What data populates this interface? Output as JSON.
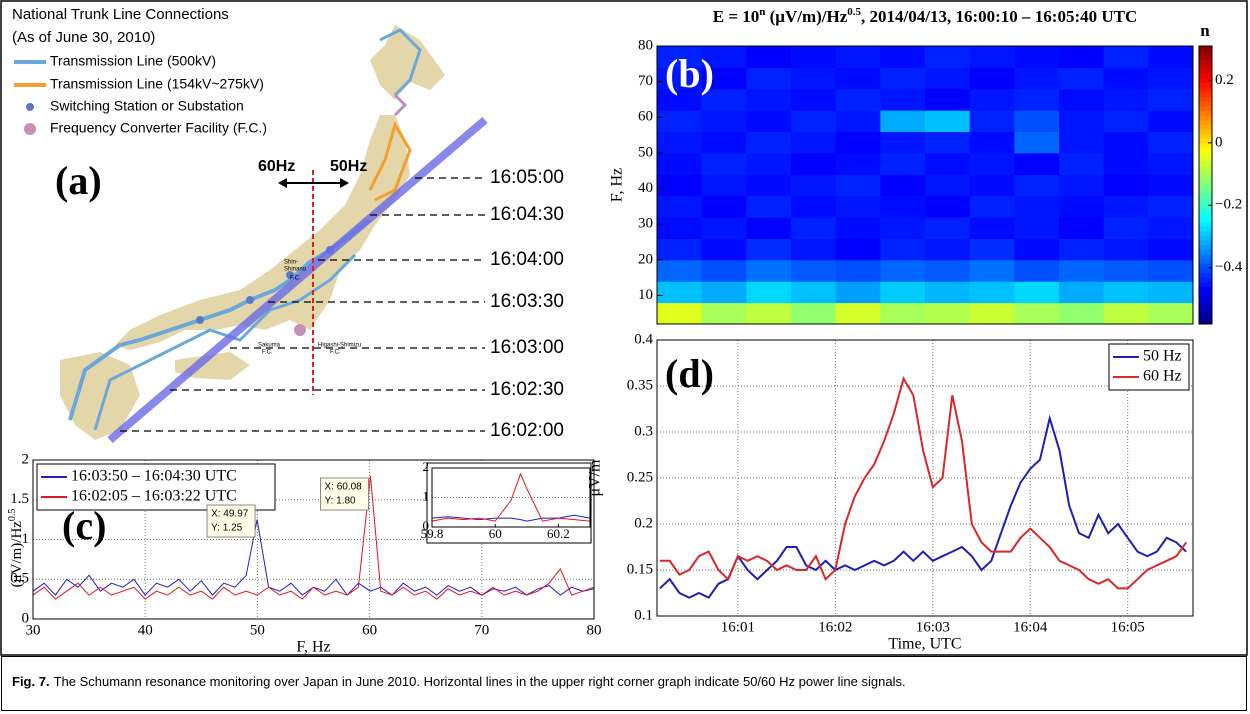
{
  "map": {
    "panel_label": "(a)",
    "title": [
      "National Trunk Line Connections",
      "(As of June 30, 2010)"
    ],
    "legend": [
      "Transmission Line (500kV)",
      "Transmission Line (154kV~275kV)",
      "Switching Station or Substation",
      "Frequency Converter Facility (F.C.)"
    ],
    "frequency_labels": [
      "60Hz",
      "50Hz"
    ],
    "times": [
      "16:05:00",
      "16:04:30",
      "16:04:00",
      "16:03:30",
      "16:03:00",
      "16:02:30",
      "16:02:00"
    ],
    "facilities": [
      [
        "Shin-",
        "Shinano",
        "F.C."
      ],
      [
        "Sakuma",
        "F.C."
      ],
      [
        "Higashi-Shimizu",
        "F.C."
      ]
    ]
  },
  "chart_data": [
    {
      "type": "heatmap",
      "panel_label": "(b)",
      "title": [
        "E = 10",
        "n",
        " (μV/m)/Hz",
        "0.5",
        ", 2014/04/13, 16:00:10 – 16:05:40 UTC"
      ],
      "ylabel": "F, Hz",
      "ylim": [
        2,
        80
      ],
      "yticks": [
        10,
        20,
        30,
        40,
        50,
        60,
        70,
        80
      ],
      "colorbar_label": "n",
      "clim": [
        -0.58,
        0.31
      ],
      "cticks": [
        {
          "value": 0.2,
          "label": "0.2"
        },
        {
          "value": 0,
          "label": "0"
        },
        {
          "value": -0.2,
          "label": "−0.2"
        },
        {
          "value": -0.4,
          "label": "−0.4"
        }
      ],
      "z": [
        [
          -0.05,
          -0.1,
          -0.08,
          -0.12,
          -0.06,
          -0.1,
          -0.09,
          -0.07,
          -0.1,
          -0.12,
          -0.08,
          -0.1
        ],
        [
          -0.3,
          -0.32,
          -0.28,
          -0.3,
          -0.33,
          -0.29,
          -0.31,
          -0.3,
          -0.28,
          -0.32,
          -0.3,
          -0.31
        ],
        [
          -0.38,
          -0.4,
          -0.37,
          -0.39,
          -0.4,
          -0.38,
          -0.39,
          -0.37,
          -0.4,
          -0.38,
          -0.39,
          -0.4
        ],
        [
          -0.44,
          -0.46,
          -0.43,
          -0.45,
          -0.47,
          -0.44,
          -0.45,
          -0.43,
          -0.46,
          -0.44,
          -0.45,
          -0.46
        ],
        [
          -0.46,
          -0.45,
          -0.47,
          -0.44,
          -0.46,
          -0.45,
          -0.44,
          -0.46,
          -0.45,
          -0.47,
          -0.44,
          -0.45
        ],
        [
          -0.45,
          -0.47,
          -0.44,
          -0.46,
          -0.45,
          -0.46,
          -0.47,
          -0.44,
          -0.45,
          -0.46,
          -0.45,
          -0.44
        ],
        [
          -0.47,
          -0.45,
          -0.46,
          -0.45,
          -0.44,
          -0.47,
          -0.45,
          -0.46,
          -0.44,
          -0.45,
          -0.47,
          -0.46
        ],
        [
          -0.46,
          -0.44,
          -0.45,
          -0.47,
          -0.46,
          -0.44,
          -0.46,
          -0.45,
          -0.47,
          -0.44,
          -0.46,
          -0.45
        ],
        [
          -0.45,
          -0.46,
          -0.44,
          -0.45,
          -0.47,
          -0.45,
          -0.44,
          -0.46,
          -0.38,
          -0.45,
          -0.46,
          -0.44
        ],
        [
          -0.44,
          -0.45,
          -0.46,
          -0.44,
          -0.45,
          -0.32,
          -0.3,
          -0.44,
          -0.4,
          -0.45,
          -0.44,
          -0.46
        ],
        [
          -0.46,
          -0.44,
          -0.45,
          -0.46,
          -0.44,
          -0.45,
          -0.47,
          -0.45,
          -0.44,
          -0.46,
          -0.45,
          -0.44
        ],
        [
          -0.45,
          -0.47,
          -0.44,
          -0.45,
          -0.46,
          -0.44,
          -0.45,
          -0.47,
          -0.45,
          -0.44,
          -0.46,
          -0.45
        ],
        [
          -0.44,
          -0.45,
          -0.47,
          -0.46,
          -0.45,
          -0.46,
          -0.44,
          -0.45,
          -0.46,
          -0.47,
          -0.44,
          -0.46
        ]
      ]
    },
    {
      "type": "line",
      "panel_label": "(c)",
      "xlabel": "F, Hz",
      "ylabel": [
        "(μV/m)/Hz",
        "0.5"
      ],
      "xlim": [
        30,
        80
      ],
      "xticks": [
        30,
        40,
        50,
        60,
        70,
        80
      ],
      "ylim": [
        0,
        2
      ],
      "yticks": [
        0,
        0.5,
        1,
        1.5,
        2
      ],
      "grid": true,
      "legend": "upper left",
      "x": [
        30,
        31,
        32,
        33,
        34,
        35,
        36,
        37,
        38,
        39,
        40,
        41,
        42,
        43,
        44,
        45,
        46,
        47,
        48,
        49,
        49.97,
        51,
        52,
        53,
        54,
        55,
        56,
        57,
        58,
        59,
        60.08,
        61,
        62,
        63,
        64,
        65,
        66,
        67,
        68,
        69,
        70,
        71,
        72,
        73,
        74,
        75,
        76,
        77,
        78,
        79,
        80
      ],
      "series": [
        {
          "name": "16:03:50 – 16:04:30 UTC",
          "color": "#1f1fc8",
          "values": [
            0.35,
            0.45,
            0.3,
            0.5,
            0.4,
            0.55,
            0.35,
            0.45,
            0.4,
            0.5,
            0.3,
            0.45,
            0.4,
            0.5,
            0.35,
            0.48,
            0.3,
            0.45,
            0.4,
            0.55,
            1.25,
            0.4,
            0.35,
            0.45,
            0.3,
            0.4,
            0.35,
            0.5,
            0.3,
            0.45,
            0.35,
            0.4,
            0.3,
            0.45,
            0.35,
            0.4,
            0.3,
            0.42,
            0.35,
            0.4,
            0.3,
            0.38,
            0.35,
            0.4,
            0.3,
            0.38,
            0.42,
            0.3,
            0.4,
            0.35,
            0.38
          ]
        },
        {
          "name": "16:02:05 – 16:03:22 UTC",
          "color": "#e8141e",
          "values": [
            0.3,
            0.4,
            0.25,
            0.35,
            0.45,
            0.3,
            0.4,
            0.3,
            0.35,
            0.4,
            0.25,
            0.35,
            0.3,
            0.4,
            0.3,
            0.35,
            0.25,
            0.4,
            0.3,
            0.35,
            0.3,
            0.4,
            0.3,
            0.35,
            0.25,
            0.4,
            0.3,
            0.35,
            0.3,
            0.4,
            1.8,
            0.35,
            0.3,
            0.4,
            0.3,
            0.35,
            0.25,
            0.38,
            0.3,
            0.35,
            0.3,
            0.4,
            0.3,
            0.35,
            0.3,
            0.35,
            0.45,
            0.63,
            0.3,
            0.35,
            0.4
          ]
        }
      ],
      "annotations": [
        [
          "X: 49.97",
          "Y: 1.25"
        ],
        [
          "X: 60.08",
          "Y: 1.80"
        ]
      ],
      "inset": {
        "xlim": [
          59.8,
          60.3
        ],
        "xticks": [
          59.8,
          60,
          60.2
        ],
        "ylim": [
          0,
          2
        ],
        "yticks": [
          0,
          1,
          2
        ],
        "x": [
          59.8,
          59.85,
          59.9,
          59.95,
          60,
          60.05,
          60.08,
          60.1,
          60.15,
          60.2,
          60.25,
          60.3
        ],
        "series": [
          {
            "color": "#1f1fc8",
            "values": [
              0.3,
              0.35,
              0.3,
              0.25,
              0.3,
              0.3,
              0.25,
              0.2,
              0.3,
              0.3,
              0.4,
              0.3
            ]
          },
          {
            "color": "#e8141e",
            "values": [
              0.2,
              0.3,
              0.25,
              0.3,
              0.2,
              0.9,
              1.8,
              1.3,
              0.2,
              0.3,
              0.25,
              0.2
            ]
          }
        ]
      }
    },
    {
      "type": "line",
      "panel_label": "(d)",
      "xlabel": "Time, UTC",
      "ylabel": "μV/m",
      "xlim": [
        0.17,
        5.67
      ],
      "xticks": [
        {
          "value": 1,
          "label": "16:01"
        },
        {
          "value": 2,
          "label": "16:02"
        },
        {
          "value": 3,
          "label": "16:03"
        },
        {
          "value": 4,
          "label": "16:04"
        },
        {
          "value": 5,
          "label": "16:05"
        }
      ],
      "ylim": [
        0.1,
        0.4
      ],
      "yticks": [
        0.1,
        0.15,
        0.2,
        0.25,
        0.3,
        0.35,
        0.4
      ],
      "grid": true,
      "legend": "upper right",
      "x": [
        0.2,
        0.3,
        0.4,
        0.5,
        0.6,
        0.7,
        0.8,
        0.9,
        1.0,
        1.1,
        1.2,
        1.3,
        1.4,
        1.5,
        1.6,
        1.7,
        1.8,
        1.9,
        2.0,
        2.1,
        2.2,
        2.3,
        2.4,
        2.5,
        2.6,
        2.7,
        2.8,
        2.9,
        3.0,
        3.1,
        3.2,
        3.3,
        3.4,
        3.5,
        3.6,
        3.7,
        3.8,
        3.9,
        4.0,
        4.1,
        4.2,
        4.3,
        4.4,
        4.5,
        4.6,
        4.7,
        4.8,
        4.9,
        5.0,
        5.1,
        5.2,
        5.3,
        5.4,
        5.5,
        5.6
      ],
      "series": [
        {
          "name": "50 Hz",
          "color": "#1f1fb4",
          "values": [
            0.13,
            0.14,
            0.125,
            0.12,
            0.125,
            0.12,
            0.135,
            0.14,
            0.165,
            0.15,
            0.14,
            0.15,
            0.16,
            0.175,
            0.175,
            0.155,
            0.15,
            0.16,
            0.15,
            0.155,
            0.15,
            0.155,
            0.16,
            0.155,
            0.16,
            0.17,
            0.16,
            0.17,
            0.16,
            0.165,
            0.17,
            0.175,
            0.165,
            0.15,
            0.16,
            0.19,
            0.22,
            0.245,
            0.26,
            0.27,
            0.315,
            0.28,
            0.22,
            0.19,
            0.185,
            0.21,
            0.19,
            0.2,
            0.185,
            0.17,
            0.165,
            0.17,
            0.185,
            0.18,
            0.17
          ]
        },
        {
          "name": "60 Hz",
          "color": "#d8282a",
          "values": [
            0.16,
            0.16,
            0.145,
            0.15,
            0.165,
            0.17,
            0.15,
            0.14,
            0.165,
            0.16,
            0.165,
            0.16,
            0.15,
            0.155,
            0.15,
            0.15,
            0.165,
            0.14,
            0.15,
            0.2,
            0.23,
            0.25,
            0.265,
            0.29,
            0.32,
            0.358,
            0.34,
            0.28,
            0.24,
            0.25,
            0.34,
            0.29,
            0.2,
            0.18,
            0.17,
            0.17,
            0.17,
            0.185,
            0.195,
            0.185,
            0.175,
            0.16,
            0.155,
            0.15,
            0.14,
            0.135,
            0.14,
            0.13,
            0.13,
            0.14,
            0.15,
            0.155,
            0.16,
            0.165,
            0.18
          ]
        }
      ]
    }
  ],
  "caption": {
    "label": "Fig. 7.",
    "text": "The Schumann resonance monitoring over Japan in June 2010. Horizontal lines in the upper right corner graph indicate 50/60 Hz power line signals."
  }
}
